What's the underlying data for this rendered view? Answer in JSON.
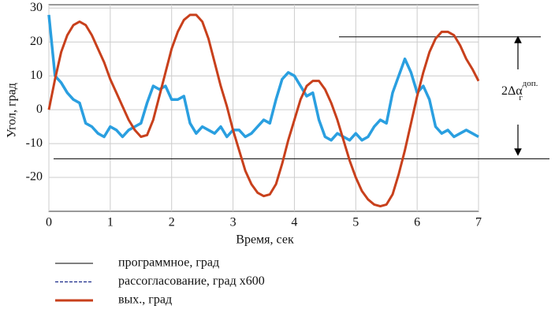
{
  "chart_data": {
    "type": "line",
    "xlabel": "Время, сек",
    "ylabel": "Угол, град",
    "x": [
      0,
      0.1,
      0.2,
      0.3,
      0.4,
      0.5,
      0.6,
      0.7,
      0.8,
      0.9,
      1,
      1.1,
      1.2,
      1.3,
      1.4,
      1.5,
      1.6,
      1.7,
      1.8,
      1.9,
      2,
      2.1,
      2.2,
      2.3,
      2.4,
      2.5,
      2.6,
      2.7,
      2.8,
      2.9,
      3,
      3.1,
      3.2,
      3.3,
      3.4,
      3.5,
      3.6,
      3.7,
      3.8,
      3.9,
      4,
      4.1,
      4.2,
      4.3,
      4.4,
      4.5,
      4.6,
      4.7,
      4.8,
      4.9,
      5,
      5.1,
      5.2,
      5.3,
      5.4,
      5.5,
      5.6,
      5.7,
      5.8,
      5.9,
      6,
      6.1,
      6.2,
      6.3,
      6.4,
      6.5,
      6.6,
      6.7,
      6.8,
      6.9,
      7
    ],
    "series": [
      {
        "name": "программное, град",
        "color": "#000000",
        "dash": false,
        "values": [
          null,
          null,
          null,
          null,
          null,
          null,
          null,
          null,
          null,
          null,
          null,
          null,
          null,
          null,
          null,
          null,
          null,
          null,
          null,
          null,
          null,
          null,
          null,
          null,
          null,
          null,
          null,
          null,
          null,
          null,
          null,
          null,
          null,
          null,
          null,
          null,
          null,
          null,
          null,
          null,
          null,
          null,
          null,
          null,
          null,
          null,
          null,
          null,
          null,
          null,
          null,
          null,
          null,
          null,
          null,
          null,
          null,
          null,
          null,
          null,
          null,
          null,
          null,
          null,
          null,
          null,
          null,
          null,
          null,
          null,
          null
        ]
      },
      {
        "name": "рассогласование, град х600",
        "color": "#2a9fe0",
        "dash": true,
        "values": [
          28,
          10,
          8,
          5,
          3,
          2,
          -4,
          -5,
          -7,
          -8,
          -5,
          -6,
          -8,
          -6,
          -5,
          -4,
          2,
          7,
          6,
          7,
          3,
          3,
          4,
          -4,
          -7,
          -5,
          -6,
          -7,
          -5,
          -8,
          -6,
          -6,
          -8,
          -7,
          -5,
          -3,
          -4,
          3,
          9,
          11,
          10,
          7,
          4,
          5,
          -3,
          -8,
          -9,
          -7,
          -8,
          -9,
          -7,
          -9,
          -8,
          -5,
          -3,
          -4,
          5,
          10,
          15,
          11,
          5,
          7,
          3,
          -5,
          -7,
          -6,
          -8,
          -7,
          -6,
          -7,
          -8
        ]
      },
      {
        "name": "вых., град",
        "color": "#c8401c",
        "dash": false,
        "values": [
          0,
          9,
          17,
          22,
          25,
          26,
          25,
          22,
          18,
          14,
          9,
          5,
          1,
          -3,
          -6,
          -8,
          -7.5,
          -3,
          4,
          11,
          18,
          23,
          26.5,
          28,
          28,
          26,
          21,
          14,
          7,
          1,
          -6,
          -12,
          -18,
          -22,
          -24.5,
          -25.5,
          -25,
          -22,
          -16,
          -9,
          -3,
          3,
          7,
          8.5,
          8.5,
          6,
          2,
          -3,
          -9,
          -15,
          -20,
          -24,
          -26.5,
          -28,
          -28.5,
          -28,
          -25,
          -19,
          -12,
          -4,
          4,
          11,
          17,
          21,
          23,
          23,
          22,
          19,
          15,
          12,
          8.5
        ]
      }
    ],
    "xlim": [
      0,
      7
    ],
    "xticks": [
      0,
      1,
      2,
      3,
      4,
      5,
      6,
      7
    ],
    "ylim": [
      -30,
      31
    ],
    "yticks": [
      -20,
      -10,
      0,
      10,
      20,
      30
    ],
    "grid": true,
    "reference_lines": [
      21.5,
      -14.5
    ],
    "annotation": {
      "text": "2Δα",
      "superscript": "доп.",
      "subscript": "г"
    }
  }
}
